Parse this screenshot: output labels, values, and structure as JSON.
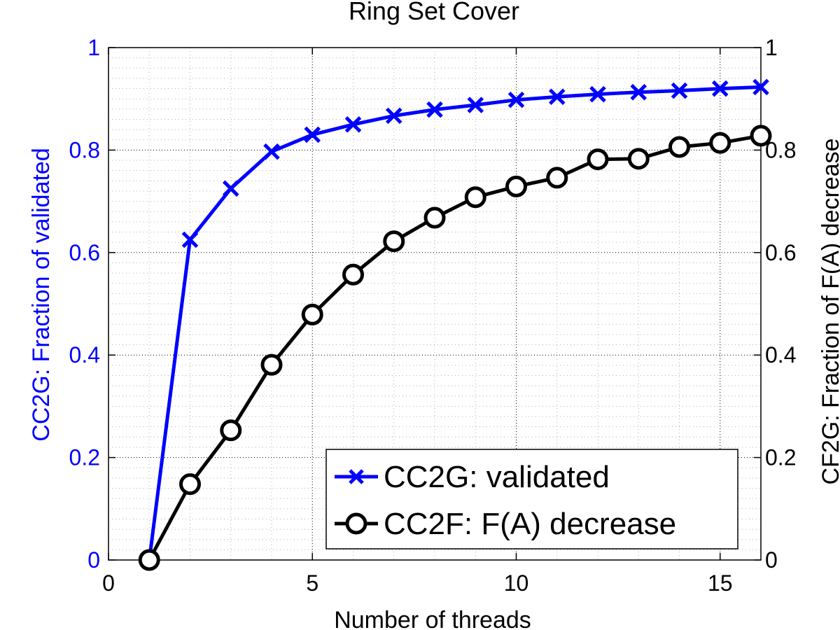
{
  "chart_data": {
    "type": "line",
    "title": "Ring Set Cover",
    "xlabel": "Number of threads",
    "ylabel_left": "CC2G: Fraction of validated",
    "ylabel_right": "CF2G: Fraction of F(A) decrease",
    "xlim": [
      0,
      16
    ],
    "ylim": [
      0,
      1
    ],
    "xticks": [
      0,
      5,
      10,
      15
    ],
    "yticks": [
      0,
      0.2,
      0.4,
      0.6,
      0.8,
      1
    ],
    "xtick_labels": [
      "0",
      "5",
      "10",
      "15"
    ],
    "ytick_labels": [
      "0",
      "0.2",
      "0.4",
      "0.6",
      "0.8",
      "1"
    ],
    "grid": true,
    "minor_grid": true,
    "legend_position": "bottom-right",
    "series": [
      {
        "name": "CC2G: validated",
        "axis": "left",
        "color": "#0000ff",
        "marker": "x",
        "x": [
          1,
          2,
          3,
          4,
          5,
          6,
          7,
          8,
          9,
          10,
          11,
          12,
          13,
          14,
          15,
          16
        ],
        "values": [
          0,
          0.625,
          0.725,
          0.797,
          0.83,
          0.85,
          0.867,
          0.879,
          0.888,
          0.898,
          0.904,
          0.909,
          0.913,
          0.916,
          0.92,
          0.923
        ]
      },
      {
        "name": "CC2F: F(A) decrease",
        "axis": "right",
        "color": "#000000",
        "marker": "o",
        "x": [
          1,
          2,
          3,
          4,
          5,
          6,
          7,
          8,
          9,
          10,
          11,
          12,
          13,
          14,
          15,
          16
        ],
        "values": [
          0,
          0.148,
          0.253,
          0.381,
          0.479,
          0.557,
          0.622,
          0.668,
          0.708,
          0.729,
          0.746,
          0.782,
          0.783,
          0.806,
          0.814,
          0.828
        ]
      }
    ]
  }
}
